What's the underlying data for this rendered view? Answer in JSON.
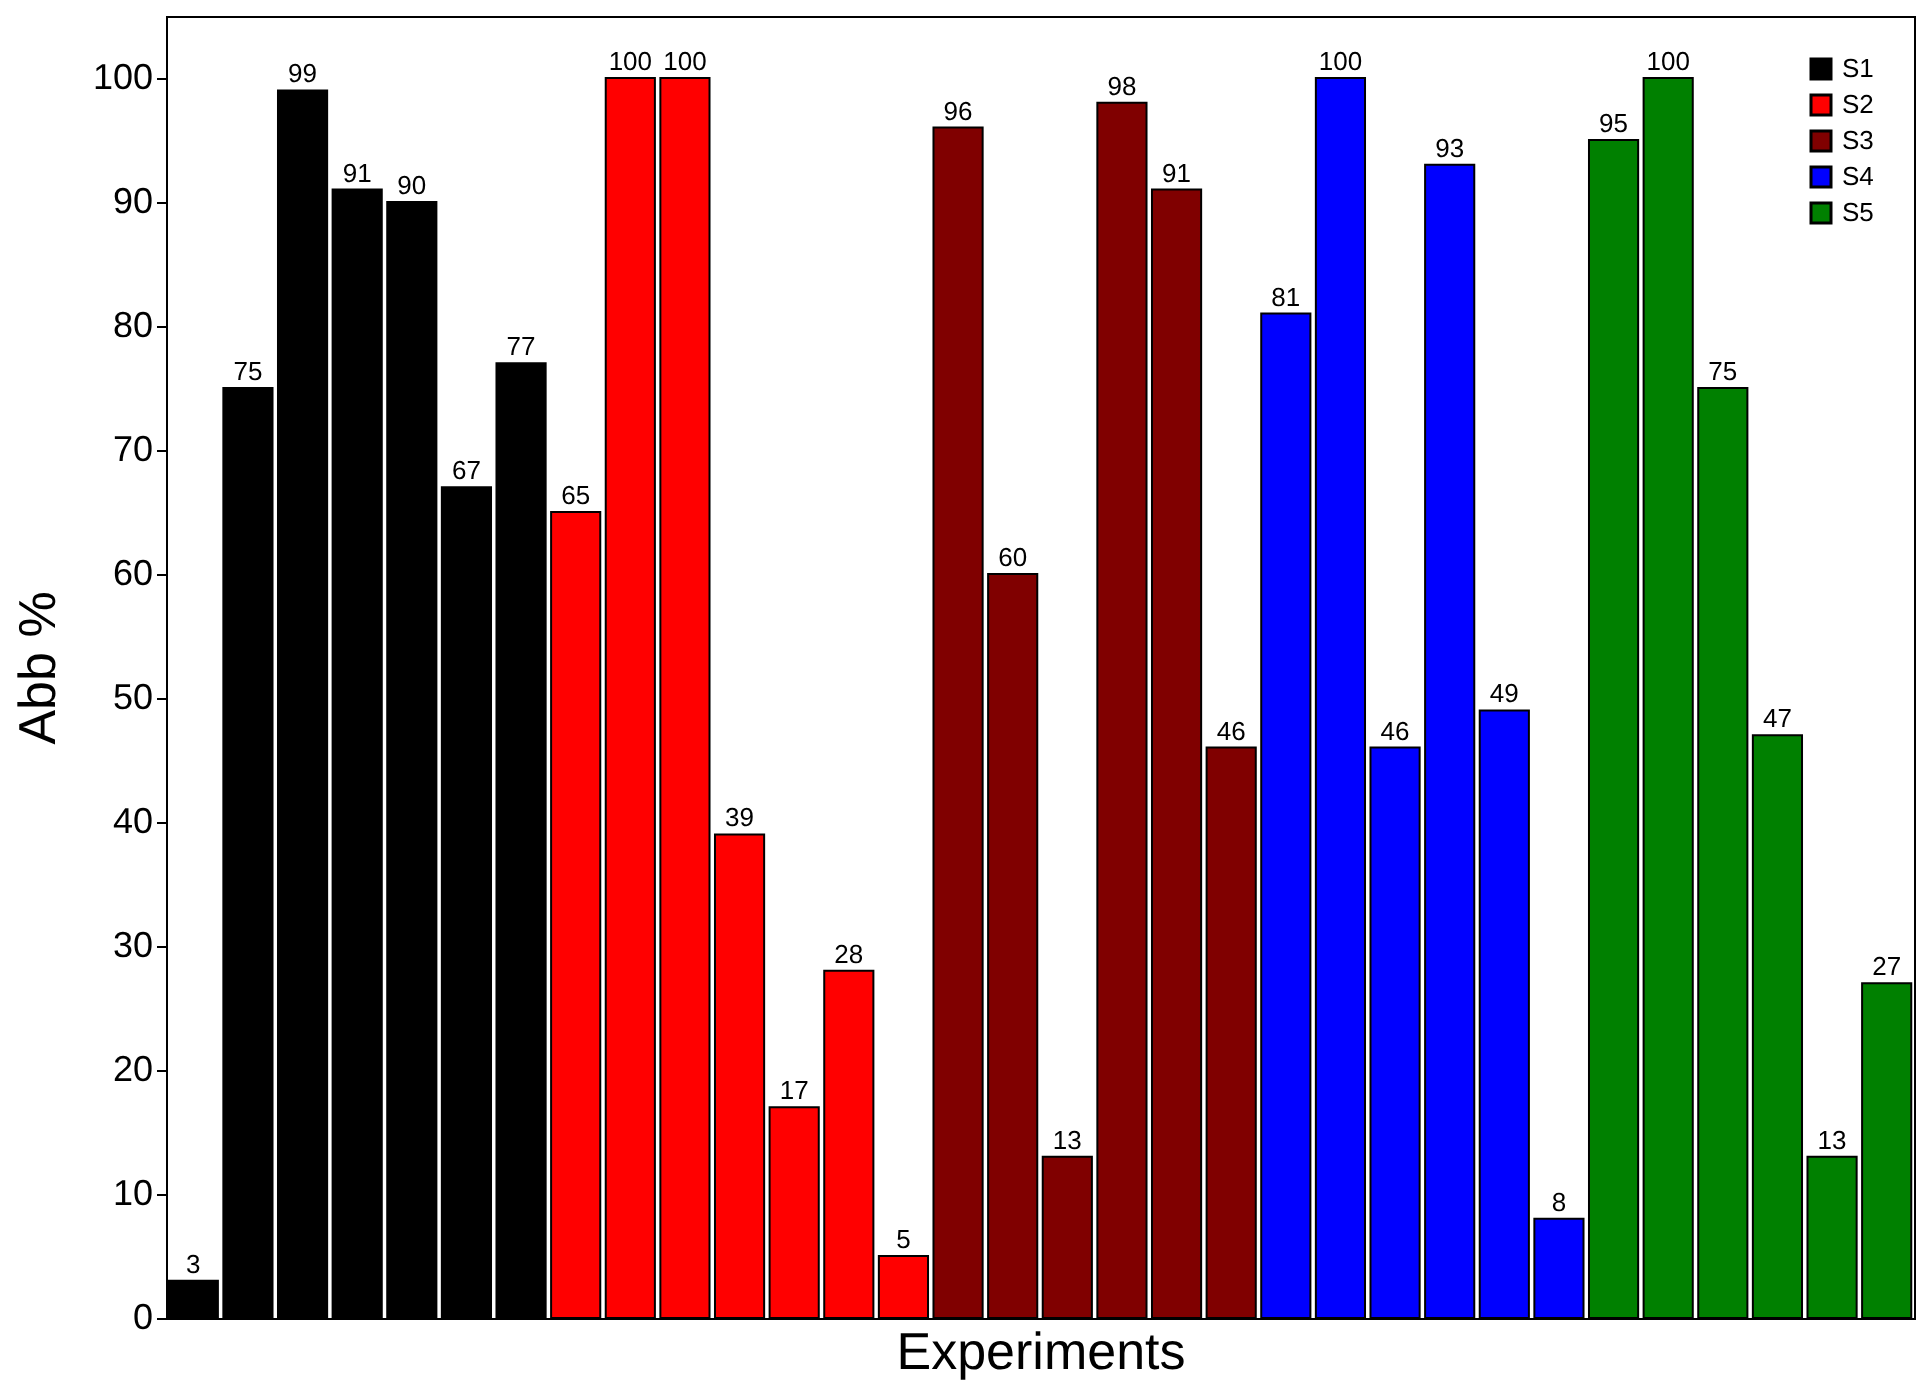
{
  "chart_data": {
    "type": "bar",
    "xlabel": "Experiments",
    "ylabel": "Abb %",
    "categories": [
      null,
      null,
      null,
      null,
      null,
      null,
      null,
      null,
      null,
      null,
      null,
      null,
      null,
      null,
      null,
      null,
      null,
      null,
      null,
      null,
      null,
      null,
      null,
      null,
      null,
      null,
      null,
      null,
      null,
      null,
      null,
      null
    ],
    "series": [
      {
        "name": "S1",
        "color": "#000000",
        "values": [
          3,
          75,
          99,
          91,
          90,
          67,
          77,
          null,
          null,
          null,
          null,
          null,
          null,
          null,
          null,
          null,
          null,
          null,
          null,
          null,
          null,
          null,
          null,
          null,
          null,
          null,
          null,
          null,
          null,
          null,
          null,
          null
        ]
      },
      {
        "name": "S2",
        "color": "#ff0000",
        "values": [
          null,
          null,
          null,
          null,
          null,
          null,
          null,
          65,
          100,
          100,
          39,
          17,
          28,
          5,
          null,
          null,
          null,
          null,
          null,
          null,
          null,
          null,
          null,
          null,
          null,
          null,
          null,
          null,
          null,
          null,
          null,
          null
        ]
      },
      {
        "name": "S3",
        "color": "#800000",
        "values": [
          null,
          null,
          null,
          null,
          null,
          null,
          null,
          null,
          null,
          null,
          null,
          null,
          null,
          null,
          96,
          60,
          13,
          98,
          91,
          46,
          null,
          null,
          null,
          null,
          null,
          null,
          null,
          null,
          null,
          null,
          null,
          null
        ]
      },
      {
        "name": "S4",
        "color": "#0000ff",
        "values": [
          null,
          null,
          null,
          null,
          null,
          null,
          null,
          null,
          null,
          null,
          null,
          null,
          null,
          null,
          null,
          null,
          null,
          null,
          null,
          null,
          81,
          100,
          46,
          93,
          49,
          8,
          null,
          null,
          null,
          null,
          null,
          null
        ]
      },
      {
        "name": "S5",
        "color": "#008000",
        "values": [
          null,
          null,
          null,
          null,
          null,
          null,
          null,
          null,
          null,
          null,
          null,
          null,
          null,
          null,
          null,
          null,
          null,
          null,
          null,
          null,
          null,
          null,
          null,
          null,
          null,
          null,
          95,
          100,
          75,
          47,
          13,
          27
        ]
      }
    ],
    "ylim": [
      0,
      105
    ],
    "yticks": [
      0,
      10,
      20,
      30,
      40,
      50,
      60,
      70,
      80,
      90,
      100
    ],
    "stacked": true,
    "data_labels": true,
    "grid": false,
    "legend": "top right",
    "tick_labels": "y"
  }
}
